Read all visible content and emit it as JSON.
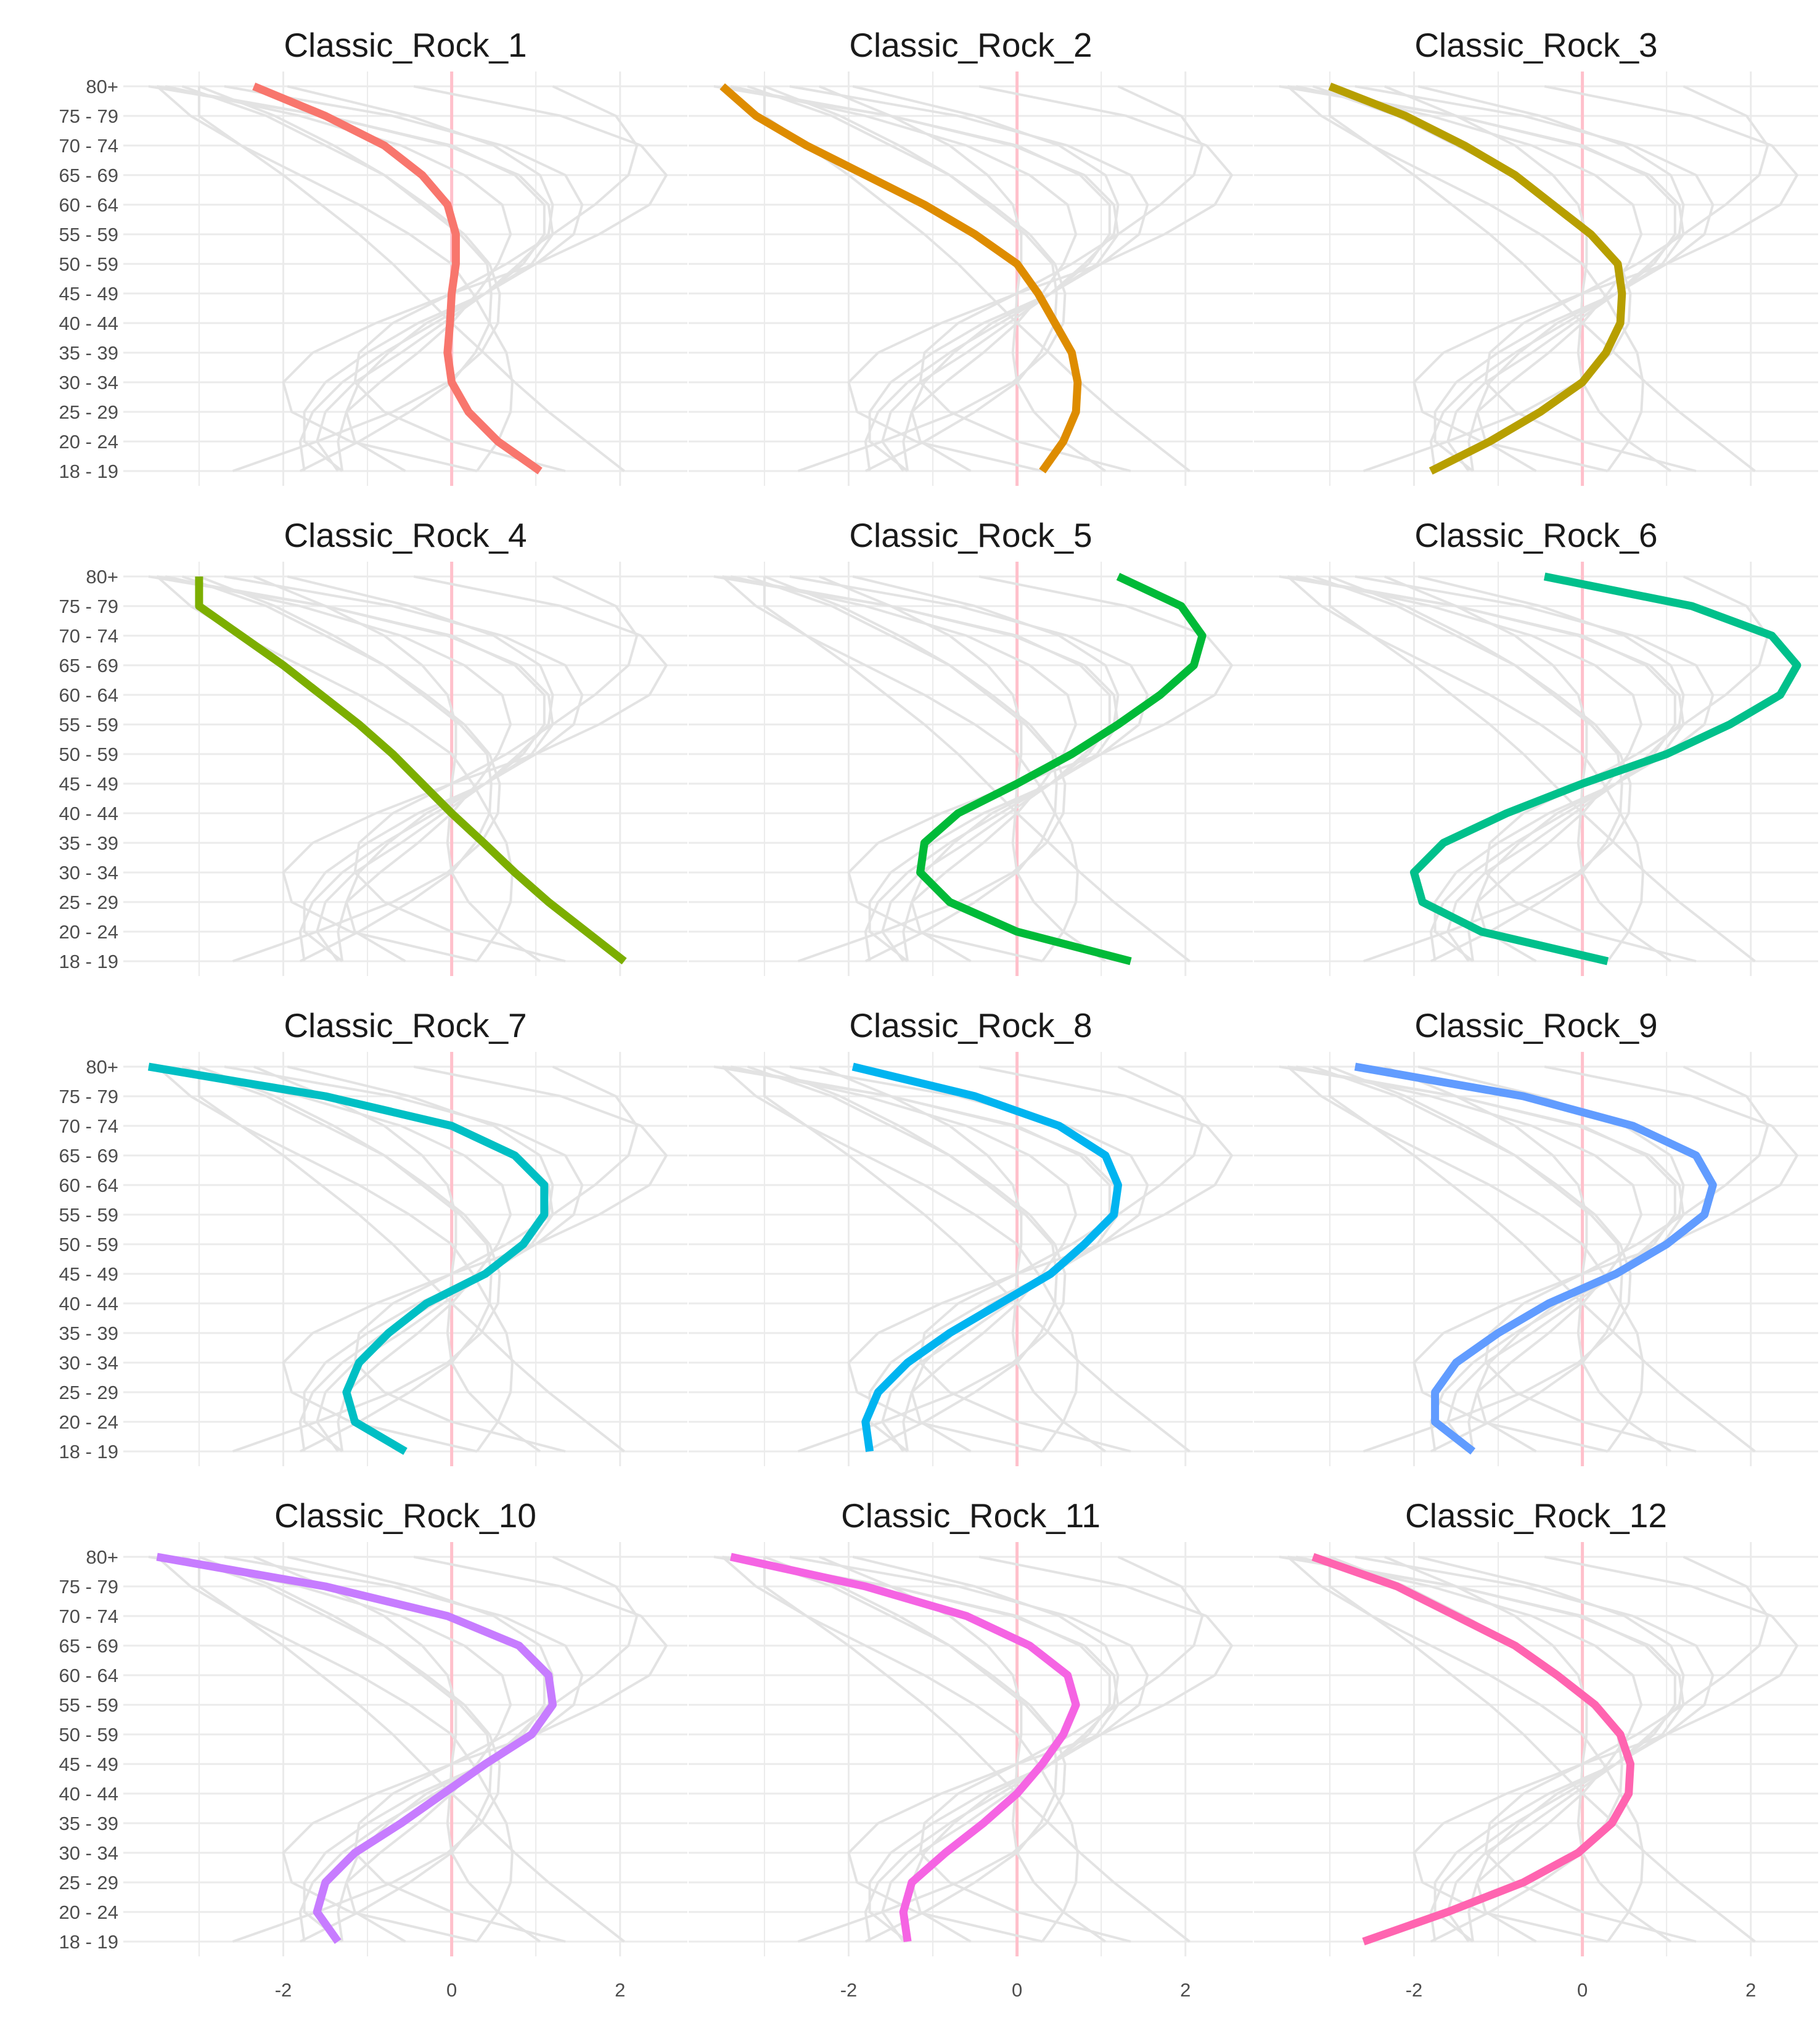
{
  "chart_data": {
    "type": "line",
    "layout": "facet grid, 4 rows x 3 columns, shared axes",
    "age_groups": [
      "18 - 19",
      "20 - 24",
      "25 - 29",
      "30 - 34",
      "35 - 39",
      "40 - 44",
      "45 - 49",
      "50 - 59",
      "55 - 59",
      "60 - 64",
      "65 - 69",
      "70 - 74",
      "75 - 79",
      "80+"
    ],
    "x_ticks": [
      -2,
      0,
      2
    ],
    "x_tick_labels": [
      "-2",
      "0",
      "2"
    ],
    "xlim": [
      -3.9,
      2.8
    ],
    "reference_line": {
      "x": 0,
      "color": "#FFC0CB"
    },
    "background_line_color": "#E3E3E3",
    "grid": true,
    "legend": "none",
    "series": [
      {
        "name": "Classic_Rock_1",
        "color": "#F8766D",
        "values": [
          1.05,
          0.55,
          0.2,
          0.0,
          -0.05,
          -0.02,
          0.0,
          0.05,
          0.05,
          -0.05,
          -0.35,
          -0.8,
          -1.5,
          -2.35
        ]
      },
      {
        "name": "Classic_Rock_2",
        "color": "#DE8C00",
        "values": [
          0.3,
          0.55,
          0.7,
          0.72,
          0.65,
          0.45,
          0.25,
          0.0,
          -0.5,
          -1.1,
          -1.8,
          -2.5,
          -3.1,
          -3.5
        ]
      },
      {
        "name": "Classic_Rock_3",
        "color": "#B79F00",
        "values": [
          -1.8,
          -1.1,
          -0.5,
          0.0,
          0.28,
          0.45,
          0.47,
          0.42,
          0.1,
          -0.35,
          -0.8,
          -1.4,
          -2.1,
          -3.0
        ]
      },
      {
        "name": "Classic_Rock_4",
        "color": "#7CAE00",
        "values": [
          2.05,
          1.6,
          1.15,
          0.75,
          0.38,
          0.0,
          -0.35,
          -0.7,
          -1.1,
          -1.55,
          -2.0,
          -2.5,
          -3.0,
          -3.0
        ]
      },
      {
        "name": "Classic_Rock_5",
        "color": "#00BA38",
        "values": [
          1.35,
          0.0,
          -0.8,
          -1.15,
          -1.1,
          -0.7,
          0.0,
          0.65,
          1.2,
          1.7,
          2.1,
          2.2,
          1.95,
          1.2
        ]
      },
      {
        "name": "Classic_Rock_6",
        "color": "#00C08B",
        "values": [
          0.3,
          -1.2,
          -1.9,
          -2.0,
          -1.65,
          -0.9,
          0.0,
          1.0,
          1.75,
          2.35,
          2.55,
          2.25,
          1.3,
          -0.45
        ]
      },
      {
        "name": "Classic_Rock_7",
        "color": "#00BFC4",
        "values": [
          -0.55,
          -1.15,
          -1.25,
          -1.1,
          -0.75,
          -0.3,
          0.4,
          0.85,
          1.1,
          1.1,
          0.75,
          0.0,
          -1.5,
          -3.6
        ]
      },
      {
        "name": "Classic_Rock_8",
        "color": "#00B4F0",
        "values": [
          -1.75,
          -1.8,
          -1.65,
          -1.3,
          -0.8,
          -0.2,
          0.4,
          0.8,
          1.15,
          1.2,
          1.05,
          0.5,
          -0.5,
          -1.95
        ]
      },
      {
        "name": "Classic_Rock_9",
        "color": "#619CFF",
        "values": [
          -1.3,
          -1.75,
          -1.75,
          -1.5,
          -1.0,
          -0.4,
          0.4,
          1.0,
          1.45,
          1.55,
          1.35,
          0.6,
          -0.7,
          -2.7
        ]
      },
      {
        "name": "Classic_Rock_10",
        "color": "#C77CFF",
        "values": [
          -1.35,
          -1.6,
          -1.5,
          -1.15,
          -0.6,
          -0.1,
          0.4,
          0.95,
          1.2,
          1.15,
          0.8,
          -0.05,
          -1.5,
          -3.5
        ]
      },
      {
        "name": "Classic_Rock_11",
        "color": "#F564E3",
        "values": [
          -1.3,
          -1.35,
          -1.25,
          -0.85,
          -0.4,
          0.0,
          0.3,
          0.55,
          0.7,
          0.6,
          0.15,
          -0.6,
          -1.8,
          -3.4
        ]
      },
      {
        "name": "Classic_Rock_12",
        "color": "#FF64B0",
        "values": [
          -2.6,
          -1.6,
          -0.7,
          -0.05,
          0.35,
          0.55,
          0.57,
          0.45,
          0.15,
          -0.3,
          -0.8,
          -1.5,
          -2.2,
          -3.2
        ]
      }
    ]
  }
}
